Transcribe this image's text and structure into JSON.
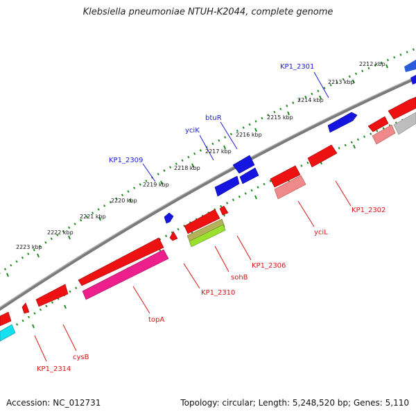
{
  "title": "Klebsiella pneumoniae NTUH-K2044, complete genome",
  "footer": {
    "accession": "Accession: NC_012731",
    "summary": "Topology: circular; Length: 5,248,520 bp; Genes: 5,110"
  },
  "colors": {
    "forward_label": "#1a1adf",
    "reverse_label": "#dd1111",
    "backbone": "#808080",
    "ruler_dots": "#1f8a1f"
  },
  "tick_labels": [
    "2212 kbp",
    "2213 kbp",
    "2214 kbp",
    "2215 kbp",
    "2216 kbp",
    "2217 kbp",
    "2218 kbp",
    "2219 kbp",
    "2220 kbp",
    "2221 kbp",
    "2222 kbp",
    "2223 kbp"
  ],
  "forward_gene_labels": [
    "KP1_2301",
    "btuR",
    "yciK",
    "KP1_2309"
  ],
  "reverse_gene_labels": [
    "KP1_2302",
    "yciL",
    "KP1_2306",
    "sohB",
    "KP1_2310",
    "topA",
    "cysB",
    "KP1_2314"
  ]
}
